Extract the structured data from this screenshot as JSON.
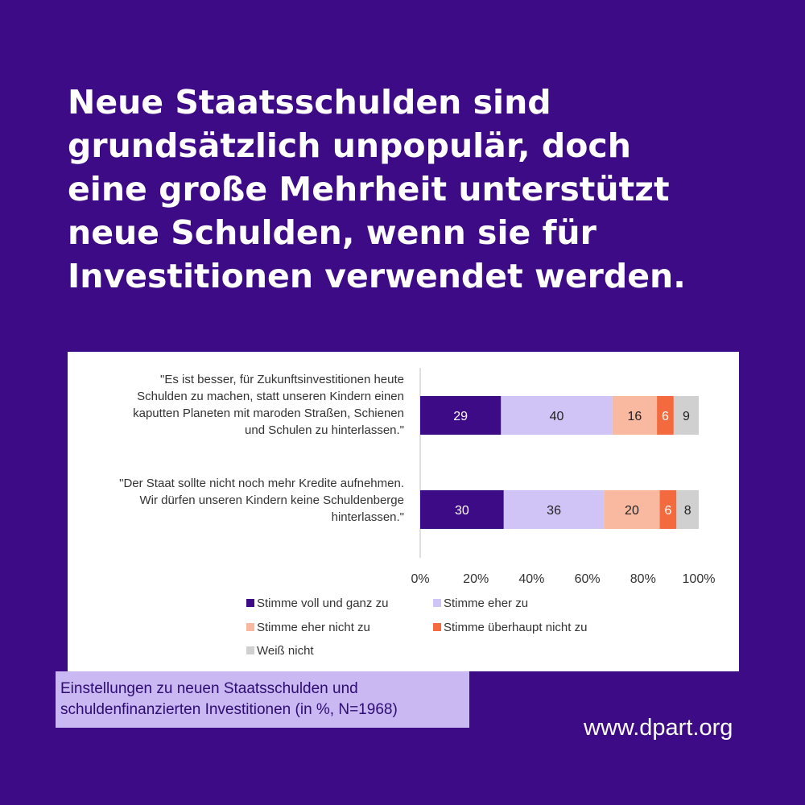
{
  "headline": {
    "lines": [
      "Neue Staatsschulden sind",
      "grundsätzlich unpopulär, doch",
      "eine große Mehrheit unterstützt",
      "neue Schulden, wenn sie für",
      "Investitionen verwendet werden."
    ]
  },
  "caption": {
    "line1": "Einstellungen zu neuen Staatsschulden und",
    "line2": "schuldenfinanzierten Investitionen (in %, N=1968)"
  },
  "website": "www.dpart.org",
  "chart_data": {
    "type": "bar",
    "orientation": "horizontal",
    "stacked": true,
    "categories": [
      [
        "\"Es ist besser, für Zukunftsinvestitionen heute",
        "Schulden zu machen, statt unseren Kindern einen",
        "kaputten Planeten mit maroden Straßen, Schienen",
        "und Schulen zu hinterlassen.\""
      ],
      [
        "\"Der Staat sollte nicht noch mehr Kredite aufnehmen.",
        "Wir dürfen unseren Kindern keine Schuldenberge",
        "hinterlassen.\""
      ]
    ],
    "series": [
      {
        "name": "Stimme voll und ganz zu",
        "values": [
          29,
          30
        ],
        "color": "#3e0b86",
        "label_color": "#ffffff"
      },
      {
        "name": "Stimme eher zu",
        "values": [
          40,
          36
        ],
        "color": "#cfc4f5",
        "label_color": "#222222"
      },
      {
        "name": "Stimme eher nicht zu",
        "values": [
          16,
          20
        ],
        "color": "#f9b8a0",
        "label_color": "#222222"
      },
      {
        "name": "Stimme überhaupt nicht zu",
        "values": [
          6,
          6
        ],
        "color": "#f26a3d",
        "label_color": "#ffffff"
      },
      {
        "name": "Weiß nicht",
        "values": [
          9,
          8
        ],
        "color": "#d0d0d0",
        "label_color": "#222222"
      }
    ],
    "xlim": [
      0,
      100
    ],
    "x_ticks": [
      "0%",
      "20%",
      "40%",
      "60%",
      "80%",
      "100%"
    ],
    "grid": false,
    "legend_position": "bottom"
  }
}
